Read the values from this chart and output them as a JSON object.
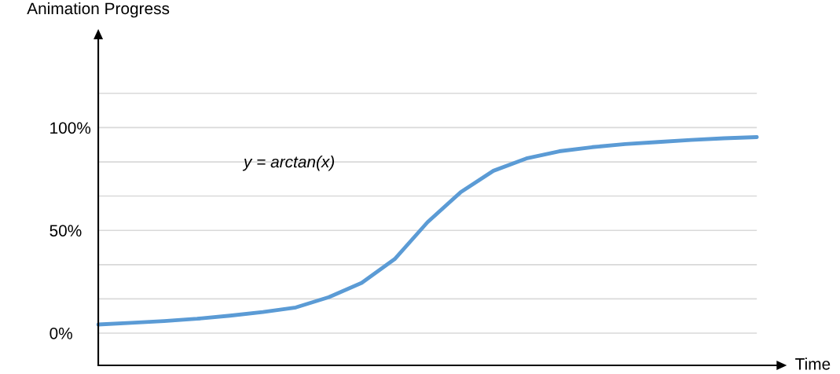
{
  "chart_data": {
    "type": "line",
    "title": "Animation Progress",
    "xlabel": "Time",
    "categories": [
      null,
      null,
      null,
      null,
      null,
      null,
      null,
      null,
      null,
      null,
      null,
      null,
      null,
      null,
      null,
      null,
      null,
      null,
      null,
      null,
      null
    ],
    "series": [
      {
        "name": "y = arctan(x)",
        "color": "#5b9bd5",
        "values": [
          4.2,
          5.0,
          5.9,
          7.0,
          8.5,
          10.3,
          12.5,
          17.5,
          24.5,
          36,
          54,
          68.5,
          79,
          85,
          88.5,
          90.5,
          92,
          93,
          94,
          94.8,
          95.4
        ]
      }
    ],
    "ylim": [
      -15.7,
      143
    ],
    "yticks": [
      {
        "value": 0,
        "label": "0%"
      },
      {
        "value": 16.7,
        "label": null
      },
      {
        "value": 33.3,
        "label": null
      },
      {
        "value": 50,
        "label": "50%"
      },
      {
        "value": 66.7,
        "label": null
      },
      {
        "value": 83.3,
        "label": null
      },
      {
        "value": 100,
        "label": "100%"
      },
      {
        "value": 116.7,
        "label": null
      }
    ],
    "grid": "y",
    "tick_labels": "y",
    "marker": "none",
    "line_style": "solid",
    "legend": false
  }
}
